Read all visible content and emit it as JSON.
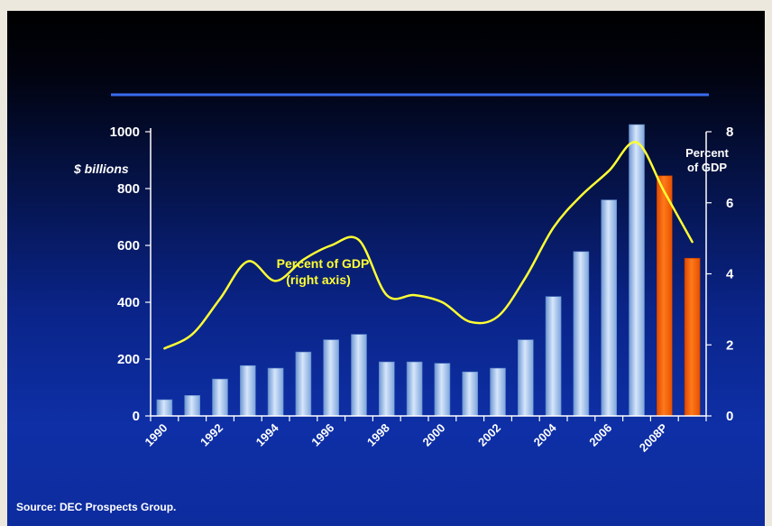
{
  "chart_data": {
    "type": "bar",
    "categories": [
      "1990",
      "1991",
      "1992",
      "1993",
      "1994",
      "1995",
      "1996",
      "1997",
      "1998",
      "1999",
      "2000",
      "2001",
      "2002",
      "2003",
      "2004",
      "2005",
      "2006",
      "2007",
      "2008P",
      "2009"
    ],
    "x_tick_labels": [
      "1990",
      "1992",
      "1994",
      "1996",
      "1998",
      "2000",
      "2002",
      "2004",
      "2006",
      "2008P"
    ],
    "series": [
      {
        "values": [
          57,
          72,
          130,
          177,
          168,
          225,
          268,
          287,
          190,
          190,
          185,
          155,
          168,
          268,
          420,
          578,
          760,
          1025,
          845,
          555
        ],
        "color": "#a9c9f0",
        "projection_color": "#ff5a00",
        "projection_from_index": 18
      },
      {
        "name": "Percent of GDP",
        "type": "line",
        "axis": "right",
        "values": [
          1.9,
          2.3,
          3.3,
          4.35,
          3.8,
          4.4,
          4.8,
          4.95,
          3.4,
          3.4,
          3.2,
          2.65,
          2.8,
          3.9,
          5.3,
          6.2,
          6.9,
          7.7,
          6.3,
          4.9
        ],
        "color": "#ffff33"
      }
    ],
    "ylim": [
      0,
      1000
    ],
    "y_ticks": [
      "0",
      "200",
      "400",
      "600",
      "800",
      "1000"
    ],
    "y2lim": [
      0,
      8
    ],
    "y2_ticks": [
      "0",
      "2",
      "4",
      "6",
      "8"
    ],
    "ylabel": "$ billions",
    "y2label_line1": "Percent",
    "y2label_line2": "of GDP",
    "annotation_line1": "Percent of GDP",
    "annotation_line2": "(right axis)"
  },
  "source": "Source: DEC Prospects Group.",
  "colors": {
    "rule_line": "#3a6cf0",
    "axis": "#ffffff",
    "bar": "#a9c9f0",
    "projection": "#ff5a00",
    "line": "#ffff33"
  }
}
